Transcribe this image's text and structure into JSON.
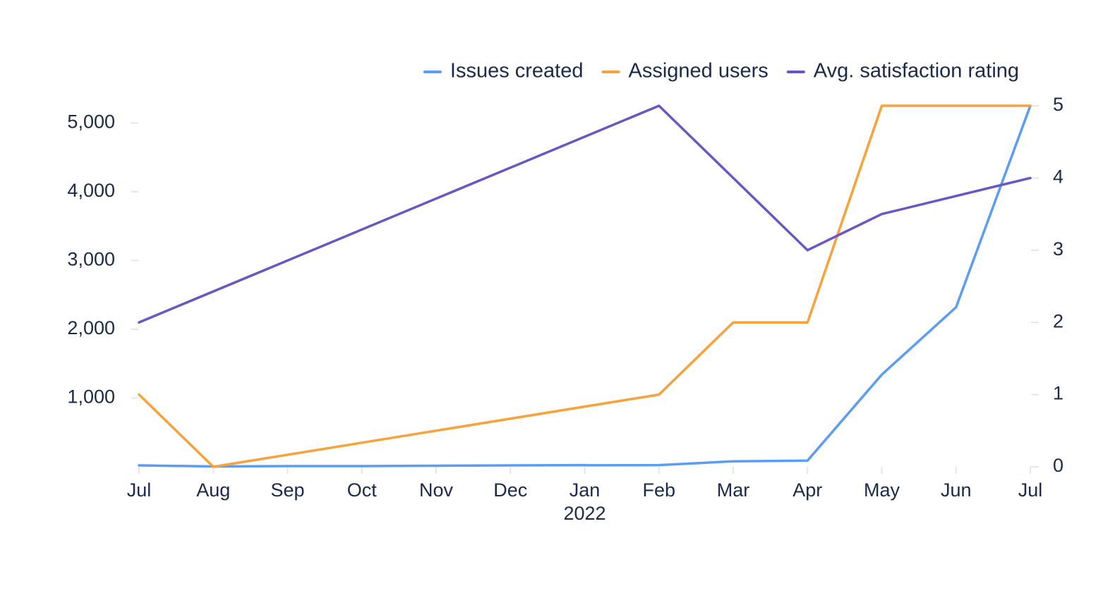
{
  "chart_data": {
    "type": "line",
    "title": "",
    "categories": [
      "Jul",
      "Aug",
      "Sep",
      "Oct",
      "Nov",
      "Dec",
      "Jan",
      "Feb",
      "Mar",
      "Apr",
      "May",
      "Jun",
      "Jul"
    ],
    "year_label": "2022",
    "series": [
      {
        "name": "Issues created",
        "axis": "left",
        "color": "#5b9cf5",
        "points": [
          {
            "x": 0,
            "y": 20
          },
          {
            "x": 1,
            "y": 5
          },
          {
            "x": 2,
            "y": 10
          },
          {
            "x": 3,
            "y": 10
          },
          {
            "x": 4,
            "y": 15
          },
          {
            "x": 5,
            "y": 20
          },
          {
            "x": 6,
            "y": 25
          },
          {
            "x": 6.05,
            "y": 22
          },
          {
            "x": 7,
            "y": 25
          },
          {
            "x": 8,
            "y": 80
          },
          {
            "x": 9,
            "y": 90
          },
          {
            "x": 10,
            "y": 1340
          },
          {
            "x": 11,
            "y": 2320
          },
          {
            "x": 12,
            "y": 5250
          }
        ]
      },
      {
        "name": "Assigned users",
        "axis": "right",
        "color": "#f7a23b",
        "points": [
          {
            "x": 0,
            "y": 1
          },
          {
            "x": 1,
            "y": 0
          },
          {
            "x": 7,
            "y": 1
          },
          {
            "x": 8,
            "y": 2
          },
          {
            "x": 9,
            "y": 2
          },
          {
            "x": 10,
            "y": 5
          },
          {
            "x": 12,
            "y": 5
          }
        ]
      },
      {
        "name": "Avg. satisfaction rating",
        "axis": "right",
        "color": "#6b56c4",
        "points": [
          {
            "x": 0,
            "y": 2
          },
          {
            "x": 7,
            "y": 5
          },
          {
            "x": 9,
            "y": 3
          },
          {
            "x": 10,
            "y": 3.5
          },
          {
            "x": 12,
            "y": 4
          }
        ]
      }
    ],
    "left_axis": {
      "ylim": [
        0,
        5250
      ],
      "ticks": [
        1000,
        2000,
        3000,
        4000,
        5000
      ],
      "tick_labels": [
        "1,000",
        "2,000",
        "3,000",
        "4,000",
        "5,000"
      ]
    },
    "right_axis": {
      "ylim": [
        0,
        5
      ],
      "ticks": [
        0,
        1,
        2,
        3,
        4,
        5
      ],
      "tick_labels": [
        "0",
        "1",
        "2",
        "3",
        "4",
        "5"
      ]
    },
    "grid": false,
    "legend_position": "top-right"
  }
}
